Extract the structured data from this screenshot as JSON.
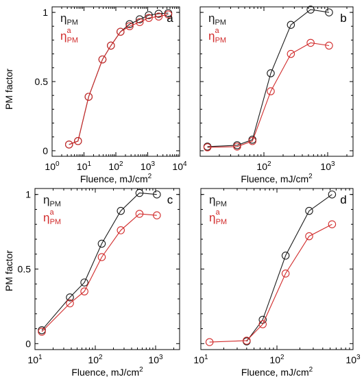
{
  "figure": {
    "ylabel_top": "PM factor",
    "ylabel_bottom": "PM factor"
  },
  "colors": {
    "eta": "#1a1a1a",
    "eta_a": "#d12a2a",
    "axis": "#000000"
  },
  "chart_data": [
    {
      "panel": "a",
      "type": "line",
      "xscale": "log",
      "xlim": [
        1,
        10000
      ],
      "ylim": [
        -0.04,
        1.04
      ],
      "xticks": [
        1,
        10,
        100,
        1000,
        10000
      ],
      "xtick_labels": [
        {
          "base": "10",
          "exp": "0"
        },
        {
          "base": "10",
          "exp": "1"
        },
        {
          "base": "10",
          "exp": "2"
        },
        {
          "base": "10",
          "exp": "3"
        },
        {
          "base": "10",
          "exp": "4"
        }
      ],
      "yticks": [
        0,
        0.5,
        1
      ],
      "ytick_labels": [
        "0",
        "0.5",
        "1"
      ],
      "xlabel": "Fluence, mJ/cm",
      "xlabel_sup": "2",
      "ylabel": "PM factor",
      "legend": [
        {
          "base": "η",
          "sub": "PM",
          "sup": ""
        },
        {
          "base": "η",
          "sub": "PM",
          "sup": "a"
        }
      ],
      "markers": "open-circle",
      "series": [
        {
          "name": "η_PM",
          "x": [
            3.4,
            6.5,
            14,
            38,
            70,
            140,
            270,
            560,
            1080,
            2200,
            4400
          ],
          "y": [
            0.045,
            0.07,
            0.39,
            0.66,
            0.76,
            0.86,
            0.915,
            0.95,
            0.98,
            0.99,
            0.995
          ]
        },
        {
          "name": "η_PM^a",
          "x": [
            3.4,
            6.5,
            14,
            38,
            70,
            140,
            270,
            560,
            1080,
            2200,
            4400
          ],
          "y": [
            0.045,
            0.07,
            0.39,
            0.66,
            0.76,
            0.86,
            0.9,
            0.93,
            0.96,
            0.97,
            0.985
          ]
        }
      ]
    },
    {
      "panel": "b",
      "type": "line",
      "xscale": "log",
      "xlim": [
        10,
        2500
      ],
      "ylim": [
        -0.04,
        1.04
      ],
      "xticks": [
        100,
        1000
      ],
      "xtick_labels": [
        {
          "base": "10",
          "exp": "2"
        },
        {
          "base": "10",
          "exp": "3"
        }
      ],
      "yticks": [
        0,
        0.5,
        1
      ],
      "ytick_labels": [],
      "xlabel": "Fluence, mJ/cm",
      "xlabel_sup": "2",
      "ylabel": "",
      "legend": [
        {
          "base": "η",
          "sub": "PM",
          "sup": ""
        },
        {
          "base": "η",
          "sub": "PM",
          "sup": "a"
        }
      ],
      "markers": "open-circle",
      "series": [
        {
          "name": "η_PM",
          "x": [
            13,
            38,
            66,
            128,
            265,
            540,
            1050
          ],
          "y": [
            0.03,
            0.04,
            0.08,
            0.56,
            0.91,
            1.02,
            1.0
          ]
        },
        {
          "name": "η_PM^a",
          "x": [
            13,
            38,
            66,
            128,
            265,
            540,
            1050
          ],
          "y": [
            0.025,
            0.03,
            0.07,
            0.43,
            0.7,
            0.78,
            0.76
          ]
        }
      ]
    },
    {
      "panel": "c",
      "type": "line",
      "xscale": "log",
      "xlim": [
        10,
        2500
      ],
      "ylim": [
        -0.04,
        1.04
      ],
      "xticks": [
        10,
        100,
        1000
      ],
      "xtick_labels": [
        {
          "base": "10",
          "exp": "1"
        },
        {
          "base": "10",
          "exp": "2"
        },
        {
          "base": "10",
          "exp": "3"
        }
      ],
      "yticks": [
        0,
        0.5,
        1
      ],
      "ytick_labels": [
        "0",
        "0.5",
        "1"
      ],
      "xlabel": "Fluence, mJ/cm",
      "xlabel_sup": "2",
      "ylabel": "PM factor",
      "legend": [
        {
          "base": "η",
          "sub": "PM",
          "sup": ""
        },
        {
          "base": "η",
          "sub": "PM",
          "sup": "a"
        }
      ],
      "markers": "open-circle",
      "series": [
        {
          "name": "η_PM",
          "x": [
            13,
            38,
            66,
            128,
            265,
            540,
            1050
          ],
          "y": [
            0.09,
            0.31,
            0.41,
            0.67,
            0.89,
            1.01,
            1.0
          ]
        },
        {
          "name": "η_PM^a",
          "x": [
            13,
            38,
            66,
            128,
            265,
            540,
            1050
          ],
          "y": [
            0.08,
            0.27,
            0.35,
            0.58,
            0.76,
            0.87,
            0.86
          ]
        }
      ]
    },
    {
      "panel": "d",
      "type": "line",
      "xscale": "log",
      "xlim": [
        10,
        1000
      ],
      "ylim": [
        -0.04,
        1.04
      ],
      "xticks": [
        10,
        100,
        1000
      ],
      "xtick_labels": [
        {
          "base": "10",
          "exp": "1"
        },
        {
          "base": "10",
          "exp": "2"
        },
        {
          "base": "10",
          "exp": "3"
        }
      ],
      "yticks": [
        0,
        0.5,
        1
      ],
      "ytick_labels": [],
      "xlabel": "Fluence, mJ/cm",
      "xlabel_sup": "2",
      "ylabel": "",
      "legend": [
        {
          "base": "η",
          "sub": "PM",
          "sup": ""
        },
        {
          "base": "η",
          "sub": "PM",
          "sup": "a"
        }
      ],
      "markers": "open-circle",
      "series": [
        {
          "name": "η_PM",
          "x": [
            40,
            65,
            130,
            265,
            530
          ],
          "y": [
            0.015,
            0.16,
            0.59,
            0.89,
            1.0
          ]
        },
        {
          "name": "η_PM^a",
          "x": [
            13,
            40,
            65,
            130,
            265,
            530
          ],
          "y": [
            0.01,
            0.02,
            0.13,
            0.47,
            0.72,
            0.8
          ]
        }
      ]
    }
  ]
}
